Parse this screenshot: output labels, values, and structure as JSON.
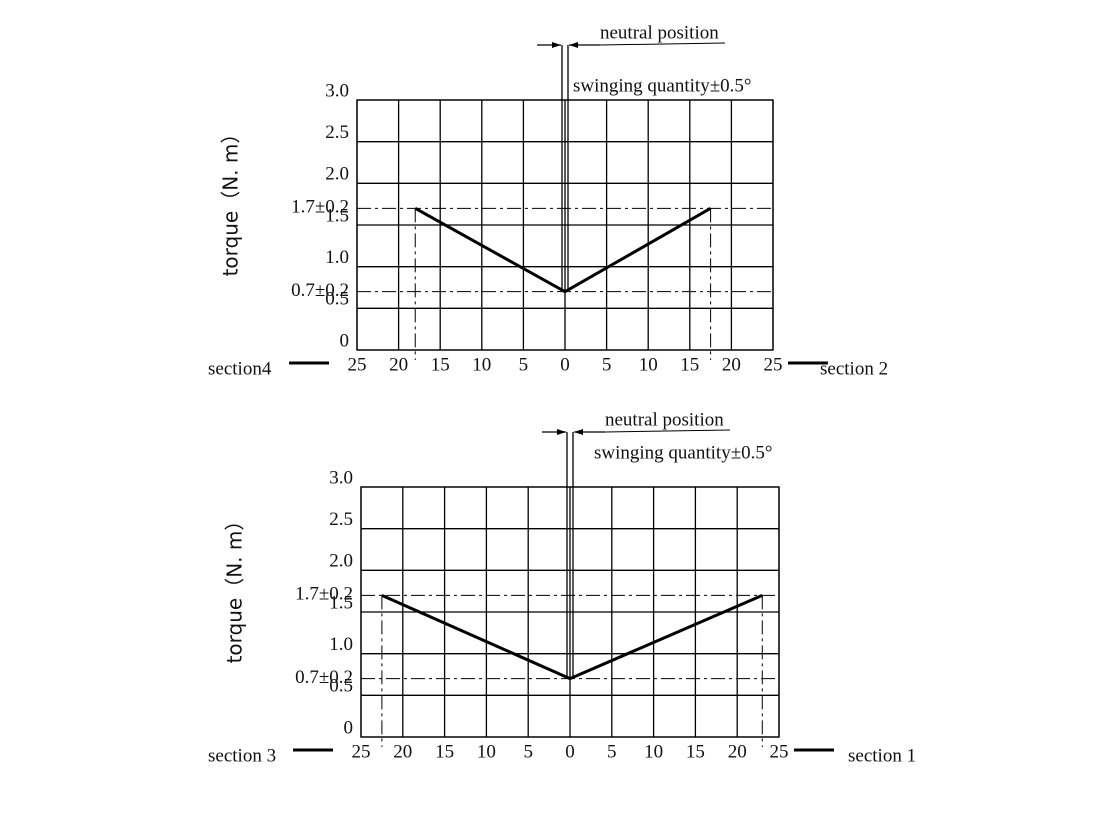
{
  "chart_data": [
    {
      "type": "line",
      "ylabel": "torque（N. m）",
      "annotations": [
        "neutral position",
        "swinging quantity±0.5°"
      ],
      "section_left": "section4",
      "section_right": "section 2",
      "xlim": [
        -25,
        25
      ],
      "xticks": [
        {
          "value": -25,
          "label": "25"
        },
        {
          "value": -20,
          "label": "20"
        },
        {
          "value": -15,
          "label": "15"
        },
        {
          "value": -10,
          "label": "10"
        },
        {
          "value": -5,
          "label": "5"
        },
        0,
        5,
        10,
        15,
        20,
        25
      ],
      "ylim": [
        0,
        3
      ],
      "yticks": [
        0,
        0.5,
        {
          "value": 1,
          "label": "1.0"
        },
        1.5,
        {
          "value": 2,
          "label": "2.0"
        },
        2.5,
        {
          "value": 3,
          "label": "3.0"
        }
      ],
      "ref_yticks": [
        {
          "value": 1.7,
          "label": "1.7±0.2"
        },
        {
          "value": 0.7,
          "label": "0.7±0.2"
        }
      ],
      "grid": true,
      "series": [
        {
          "color": "#000000",
          "x": [
            -18,
            0,
            17.5
          ],
          "values": [
            1.7,
            0.7,
            1.7
          ]
        }
      ]
    },
    {
      "type": "line",
      "ylabel": "torque（N. m）",
      "annotations": [
        "neutral position",
        "swinging quantity±0.5°"
      ],
      "section_left": "section 3",
      "section_right": "section 1",
      "xlim": [
        -25,
        25
      ],
      "xticks": [
        {
          "value": -25,
          "label": "25"
        },
        {
          "value": -20,
          "label": "20"
        },
        {
          "value": -15,
          "label": "15"
        },
        {
          "value": -10,
          "label": "10"
        },
        {
          "value": -5,
          "label": "5"
        },
        0,
        5,
        10,
        15,
        20,
        25
      ],
      "ylim": [
        0,
        3
      ],
      "yticks": [
        0,
        0.5,
        {
          "value": 1,
          "label": "1.0"
        },
        1.5,
        {
          "value": 2,
          "label": "2.0"
        },
        2.5,
        {
          "value": 3,
          "label": "3.0"
        }
      ],
      "ref_yticks": [
        {
          "value": 1.7,
          "label": "1.7±0.2"
        },
        {
          "value": 0.7,
          "label": "0.7±0.2"
        }
      ],
      "grid": true,
      "series": [
        {
          "color": "#000000",
          "x": [
            -22.5,
            0,
            23
          ],
          "values": [
            1.7,
            0.7,
            1.7
          ]
        }
      ]
    }
  ]
}
